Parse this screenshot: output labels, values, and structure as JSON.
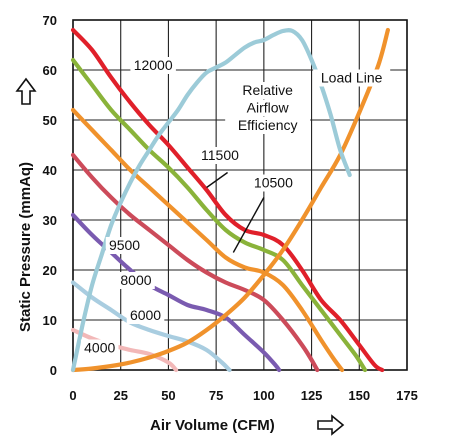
{
  "chart_data": {
    "type": "line",
    "title": "",
    "xlabel": "Air Volume (CFM)",
    "ylabel": "Static Pressure (mmAq)",
    "xlim": [
      0,
      175
    ],
    "ylim": [
      0,
      70
    ],
    "x_ticks": [
      "0",
      "25",
      "50",
      "75",
      "100",
      "125",
      "150",
      "175"
    ],
    "y_ticks": [
      "0",
      "10",
      "20",
      "30",
      "40",
      "50",
      "60",
      "70"
    ],
    "grid": true,
    "legend": "none",
    "series": [
      {
        "name": "12000",
        "color": "#e0202a",
        "x": [
          0,
          10,
          20,
          30,
          40,
          50,
          60,
          70,
          80,
          90,
          100,
          110,
          120,
          130,
          140,
          150,
          158,
          162
        ],
        "y": [
          68,
          64,
          58.5,
          53.5,
          49,
          45,
          40.5,
          36,
          31,
          28,
          27,
          25,
          20,
          14,
          10,
          5,
          1,
          0
        ]
      },
      {
        "name": "11500",
        "color": "#8ab33a",
        "x": [
          0,
          10,
          20,
          30,
          40,
          50,
          60,
          70,
          80,
          90,
          100,
          110,
          120,
          130,
          140,
          148,
          153
        ],
        "y": [
          62,
          57,
          52,
          48,
          44,
          40.5,
          36.5,
          32,
          28,
          25.5,
          24,
          22,
          17,
          12,
          7,
          3,
          0
        ]
      },
      {
        "name": "10500",
        "color": "#f0922c",
        "x": [
          0,
          10,
          20,
          30,
          40,
          50,
          60,
          70,
          80,
          90,
          100,
          110,
          120,
          130,
          137,
          141
        ],
        "y": [
          52,
          48,
          44,
          40,
          36.5,
          33,
          29.5,
          26,
          22.5,
          20.5,
          19.5,
          17,
          12,
          6,
          2,
          0
        ]
      },
      {
        "name": "9500",
        "color": "#cc4b5a",
        "x": [
          0,
          10,
          20,
          30,
          40,
          50,
          60,
          70,
          80,
          90,
          100,
          110,
          120,
          125,
          128
        ],
        "y": [
          43,
          38.5,
          34.5,
          31,
          28,
          25,
          22,
          19.5,
          17.5,
          16,
          14,
          10,
          5,
          2,
          0
        ]
      },
      {
        "name": "8000",
        "color": "#7a5bb0",
        "x": [
          0,
          10,
          20,
          30,
          40,
          50,
          60,
          70,
          80,
          90,
          100,
          106,
          108
        ],
        "y": [
          31,
          27,
          23.5,
          20,
          17,
          15,
          13,
          12,
          10.5,
          7,
          3.5,
          1,
          0
        ]
      },
      {
        "name": "6000",
        "color": "#a9cde0",
        "x": [
          0,
          10,
          20,
          30,
          40,
          50,
          60,
          70,
          78,
          82
        ],
        "y": [
          17.5,
          14.5,
          12,
          9.5,
          8,
          6.8,
          5.7,
          4,
          1.5,
          0
        ]
      },
      {
        "name": "4000",
        "color": "#f2b8b8",
        "x": [
          0,
          10,
          20,
          30,
          40,
          50,
          54
        ],
        "y": [
          8,
          6.3,
          5,
          4,
          3.2,
          1.5,
          0
        ]
      },
      {
        "name": "Relative Airflow Efficiency",
        "color": "#9ccbd8",
        "x": [
          0,
          5,
          10,
          15,
          20,
          25,
          30,
          35,
          40,
          45,
          50,
          55,
          60,
          65,
          70,
          75,
          80,
          85,
          90,
          95,
          100,
          105,
          110,
          115,
          120,
          125,
          130,
          135,
          140,
          145
        ],
        "y": [
          0,
          9,
          17,
          23,
          29,
          33.5,
          37.5,
          41,
          44,
          47,
          49.5,
          52,
          55,
          57.5,
          59.5,
          60.5,
          61.5,
          63,
          64.5,
          65.5,
          66,
          67,
          67.8,
          67.8,
          66,
          62,
          57,
          51,
          44,
          39
        ]
      },
      {
        "name": "Load Line",
        "color": "#f0922c",
        "x": [
          0,
          10,
          20,
          30,
          40,
          50,
          60,
          70,
          80,
          90,
          100,
          110,
          120,
          130,
          140,
          150,
          160,
          165
        ],
        "y": [
          0,
          0.3,
          0.8,
          1.5,
          2.5,
          3.8,
          5.5,
          8,
          11,
          14.5,
          19,
          24,
          30,
          36.5,
          43,
          51.5,
          61,
          68
        ]
      }
    ],
    "annotations": [
      {
        "text": "12000",
        "x": 42,
        "y": 60
      },
      {
        "text": "11500",
        "x": 77,
        "y": 42
      },
      {
        "text": "10500",
        "x": 105,
        "y": 36.5
      },
      {
        "text": "9500",
        "x": 27,
        "y": 24
      },
      {
        "text": "8000",
        "x": 33,
        "y": 17
      },
      {
        "text": "6000",
        "x": 38,
        "y": 10
      },
      {
        "text": "4000",
        "x": 14,
        "y": 3.5
      },
      {
        "text": "Relative",
        "x": 102,
        "y": 55
      },
      {
        "text": "Airflow",
        "x": 102,
        "y": 51.5
      },
      {
        "text": "Efficiency",
        "x": 102,
        "y": 48
      },
      {
        "text": "Load Line",
        "x": 146,
        "y": 57.5
      }
    ],
    "annotation_arrows": [
      {
        "from": [
          81,
          39.5
        ],
        "to": [
          70,
          36.5
        ]
      },
      {
        "from": [
          100,
          34.5
        ],
        "to": [
          84,
          23.5
        ]
      }
    ]
  }
}
